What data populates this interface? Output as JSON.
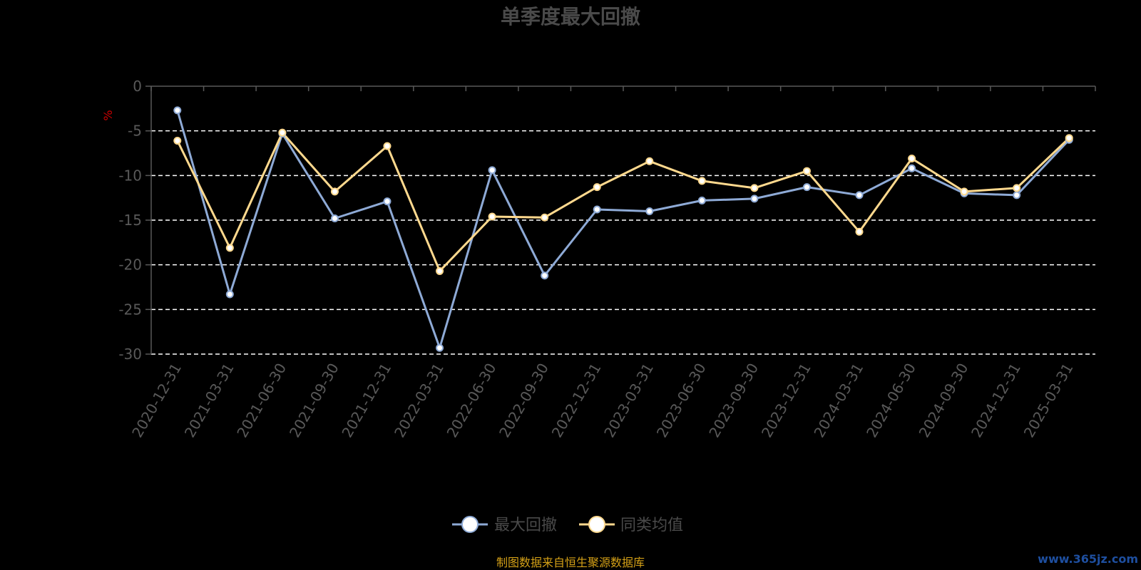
{
  "chart_data": {
    "type": "line",
    "title": "单季度最大回撤",
    "ylabel": "%",
    "ylim": [
      -30,
      0
    ],
    "yticks": [
      0,
      -5,
      -10,
      -15,
      -20,
      -25,
      -30
    ],
    "grid": true,
    "legend_position": "bottom",
    "categories": [
      "2020-12-31",
      "2021-03-31",
      "2021-06-30",
      "2021-09-30",
      "2021-12-31",
      "2022-03-31",
      "2022-06-30",
      "2022-09-30",
      "2022-12-31",
      "2023-03-31",
      "2023-06-30",
      "2023-09-30",
      "2023-12-31",
      "2024-03-31",
      "2024-06-30",
      "2024-09-30",
      "2024-12-31",
      "2025-03-31"
    ],
    "series": [
      {
        "name": "最大回撤",
        "color": "#8eaad6",
        "values": [
          -2.7,
          -23.3,
          -5.3,
          -14.8,
          -12.9,
          -29.3,
          -9.4,
          -21.2,
          -13.8,
          -14.0,
          -12.8,
          -12.6,
          -11.3,
          -12.2,
          -9.2,
          -12.0,
          -12.2,
          -6.0
        ]
      },
      {
        "name": "同类均值",
        "color": "#ffd98e",
        "values": [
          -6.1,
          -18.1,
          -5.2,
          -11.8,
          -6.7,
          -20.7,
          -14.6,
          -14.7,
          -11.3,
          -8.4,
          -10.6,
          -11.4,
          -9.5,
          -16.3,
          -8.1,
          -11.8,
          -11.4,
          -5.8
        ]
      }
    ]
  },
  "source": "制图数据来自恒生聚源数据库",
  "watermark": "www.365jz.com",
  "colors": {
    "background": "#000000",
    "axis": "#595959",
    "grid": "#ffffff",
    "series1": "#8eaad6",
    "series2": "#ffd98e",
    "source": "#d4a017",
    "unit": "#cc0000"
  }
}
